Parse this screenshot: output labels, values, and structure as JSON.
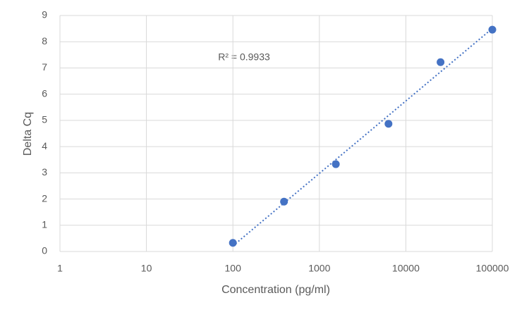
{
  "chart_data": {
    "type": "scatter",
    "x_label": "Concentration (pg/ml)",
    "y_label": "Delta Cq",
    "annotation": "R² = 0.9933",
    "series": [
      {
        "color": "#4472c4",
        "x": [
          100,
          390,
          1550,
          6300,
          25200,
          100000
        ],
        "values": [
          0.33,
          1.9,
          3.33,
          4.87,
          7.22,
          8.46
        ]
      }
    ],
    "trendline": true,
    "xscale": "log",
    "xlim": [
      1,
      100000
    ],
    "xticks": [
      1,
      10,
      100,
      1000,
      10000,
      100000
    ],
    "ylim": [
      0,
      9
    ],
    "yticks": [
      0,
      1,
      2,
      3,
      4,
      5,
      6,
      7,
      8,
      9
    ],
    "grid": true
  }
}
